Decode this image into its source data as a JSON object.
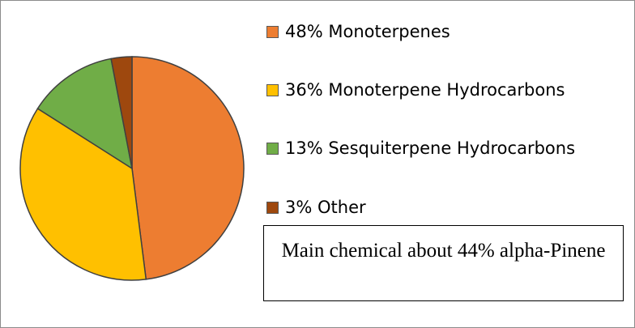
{
  "chart_data": {
    "type": "pie",
    "start_angle": "12 o'clock",
    "direction": "clockwise",
    "legend_placement": "right",
    "slices": [
      {
        "label": "48% Monoterpenes",
        "value": 48,
        "color": "#ED7D31"
      },
      {
        "label": "36% Monoterpene Hydrocarbons",
        "value": 36,
        "color": "#FFC000"
      },
      {
        "label": "13% Sesquiterpene Hydrocarbons",
        "value": 13,
        "color": "#70AD47"
      },
      {
        "label": "3% Other",
        "value": 3,
        "color": "#9E480E"
      }
    ],
    "annotation": "Main chemical about 44% alpha-Pinene"
  }
}
